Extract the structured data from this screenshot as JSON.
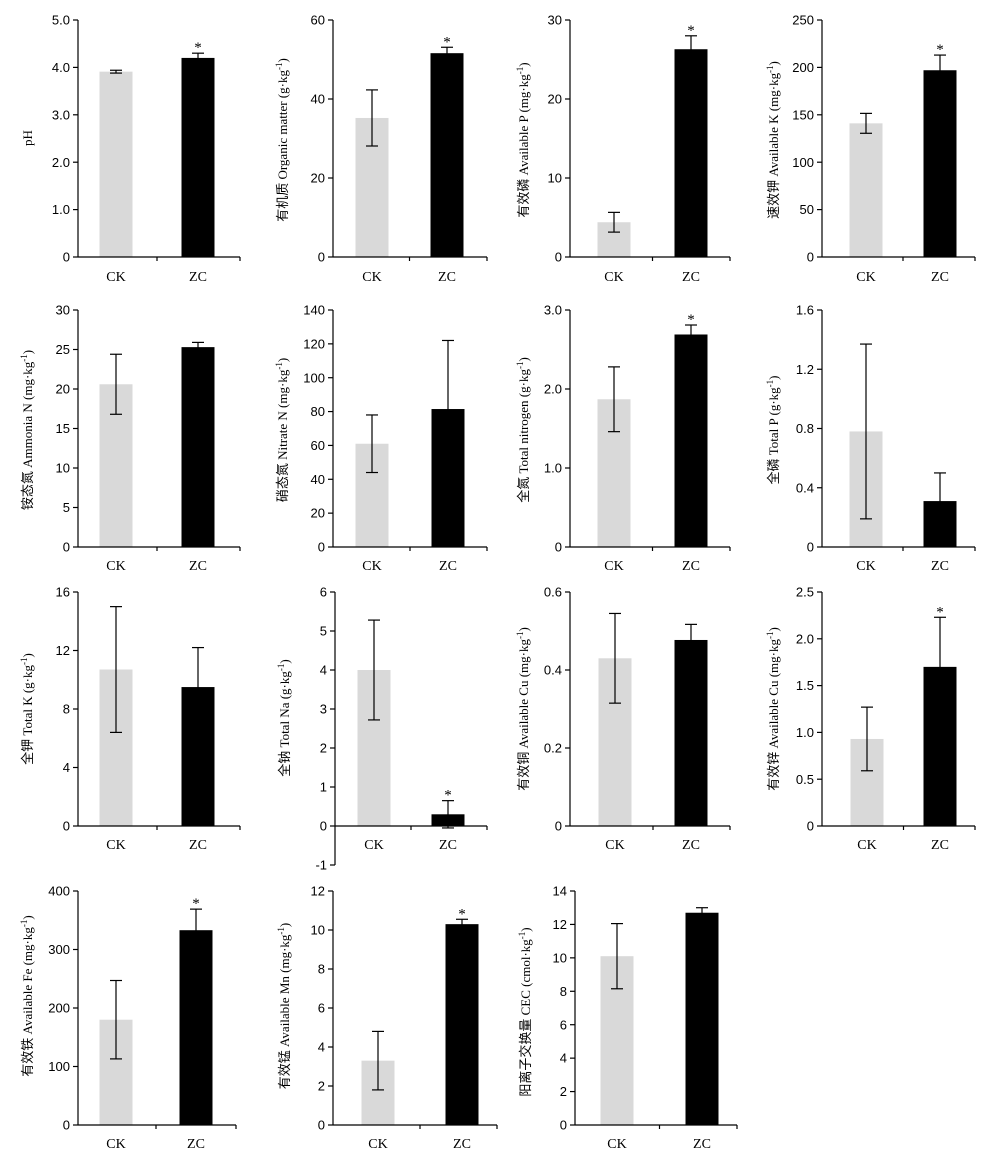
{
  "colors": {
    "CK": "#d9d9d9",
    "ZC": "#000000"
  },
  "chart_data": [
    {
      "type": "bar",
      "categories": [
        "CK",
        "ZC"
      ],
      "values": [
        3.91,
        4.2
      ],
      "errors": [
        0.03,
        0.1
      ],
      "markers": [
        "",
        "*"
      ],
      "ylabel": {
        "text": "pH"
      },
      "ylim": [
        0,
        5
      ],
      "yticks": [
        0,
        1,
        2,
        3,
        4,
        5
      ],
      "ytick_labels": [
        "0",
        "1.0",
        "2.0",
        "3.0",
        "4.0",
        "5.0"
      ]
    },
    {
      "type": "bar",
      "categories": [
        "CK",
        "ZC"
      ],
      "values": [
        35.2,
        51.6
      ],
      "errors": [
        7.1,
        1.5
      ],
      "markers": [
        "",
        "*"
      ],
      "ylabel": {
        "text": "有机质 Organic matter (g·kg",
        "sup": "-1",
        "end": ")"
      },
      "ylim": [
        0,
        60
      ],
      "yticks": [
        0,
        20,
        40,
        60
      ],
      "ytick_labels": [
        "0",
        "20",
        "40",
        "60"
      ]
    },
    {
      "type": "bar",
      "categories": [
        "CK",
        "ZC"
      ],
      "values": [
        4.4,
        26.3
      ],
      "errors": [
        1.25,
        1.7
      ],
      "markers": [
        "",
        "*"
      ],
      "ylabel": {
        "text": "有效磷 Available P (mg·kg",
        "sup": "-1",
        "end": ")"
      },
      "ylim": [
        0,
        30
      ],
      "yticks": [
        0,
        10,
        20,
        30
      ],
      "ytick_labels": [
        "0",
        "10",
        "20",
        "30"
      ]
    },
    {
      "type": "bar",
      "categories": [
        "CK",
        "ZC"
      ],
      "values": [
        141,
        197
      ],
      "errors": [
        10.5,
        16
      ],
      "markers": [
        "",
        "*"
      ],
      "ylabel": {
        "text": "速效钾 Available K (mg·kg",
        "sup": "-1",
        "end": ")"
      },
      "ylim": [
        0,
        250
      ],
      "yticks": [
        0,
        50,
        100,
        150,
        200,
        250
      ],
      "ytick_labels": [
        "0",
        "50",
        "100",
        "150",
        "200",
        "250"
      ]
    },
    {
      "type": "bar",
      "categories": [
        "CK",
        "ZC"
      ],
      "values": [
        20.6,
        25.3
      ],
      "errors": [
        3.8,
        0.6
      ],
      "markers": [
        "",
        ""
      ],
      "ylabel": {
        "text": "铵态氮 Ammonia N (mg·kg",
        "sup": "-1",
        "end": ")"
      },
      "ylim": [
        0,
        30
      ],
      "yticks": [
        0,
        5,
        10,
        15,
        20,
        25,
        30
      ],
      "ytick_labels": [
        "0",
        "5",
        "10",
        "15",
        "20",
        "25",
        "30"
      ]
    },
    {
      "type": "bar",
      "categories": [
        "CK",
        "ZC"
      ],
      "values": [
        61,
        81.5
      ],
      "errors": [
        17,
        40.5
      ],
      "markers": [
        "",
        ""
      ],
      "ylabel": {
        "text": "硝态氮 Nitrate N (mg·kg",
        "sup": "-1",
        "end": ")"
      },
      "ylim": [
        0,
        140
      ],
      "yticks": [
        0,
        20,
        40,
        60,
        80,
        100,
        120,
        140
      ],
      "ytick_labels": [
        "0",
        "20",
        "40",
        "60",
        "80",
        "100",
        "120",
        "140"
      ]
    },
    {
      "type": "bar",
      "categories": [
        "CK",
        "ZC"
      ],
      "values": [
        1.87,
        2.69
      ],
      "errors": [
        0.41,
        0.12
      ],
      "markers": [
        "",
        "*"
      ],
      "ylabel": {
        "text": "全氮 Total nitrogen (g·kg",
        "sup": "-1",
        "end": ")"
      },
      "ylim": [
        0,
        3
      ],
      "yticks": [
        0,
        1,
        2,
        3
      ],
      "ytick_labels": [
        "0",
        "1.0",
        "2.0",
        "3.0"
      ]
    },
    {
      "type": "bar",
      "categories": [
        "CK",
        "ZC"
      ],
      "values": [
        0.78,
        0.31
      ],
      "errors": [
        0.59,
        0.19
      ],
      "markers": [
        "",
        ""
      ],
      "ylabel": {
        "text": "全磷 Total P (g·kg",
        "sup": "-1",
        "end": ")"
      },
      "ylim": [
        0,
        1.6
      ],
      "yticks": [
        0,
        0.4,
        0.8,
        1.2,
        1.6
      ],
      "ytick_labels": [
        "0",
        "0.4",
        "0.8",
        "1.2",
        "1.6"
      ]
    },
    {
      "type": "bar",
      "categories": [
        "CK",
        "ZC"
      ],
      "values": [
        10.7,
        9.5
      ],
      "errors": [
        4.3,
        2.7
      ],
      "markers": [
        "",
        ""
      ],
      "ylabel": {
        "text": "全钾 Total K (g·kg",
        "sup": "-1",
        "end": ")"
      },
      "ylim": [
        0,
        16
      ],
      "yticks": [
        0,
        4,
        8,
        12,
        16
      ],
      "ytick_labels": [
        "0",
        "4",
        "8",
        "12",
        "16"
      ]
    },
    {
      "type": "bar",
      "categories": [
        "CK",
        "ZC"
      ],
      "values": [
        4.0,
        0.3
      ],
      "errors": [
        1.28,
        0.35
      ],
      "markers": [
        "",
        "*"
      ],
      "ylabel": {
        "text": "全钠 Total Na (g·kg",
        "sup": "-1",
        "end": ")"
      },
      "ylim": [
        -1,
        6
      ],
      "yticks": [
        -1,
        0,
        1,
        2,
        3,
        4,
        5,
        6
      ],
      "ytick_labels": [
        "-1",
        "0",
        "1",
        "2",
        "3",
        "4",
        "5",
        "6"
      ]
    },
    {
      "type": "bar",
      "categories": [
        "CK",
        "ZC"
      ],
      "values": [
        0.43,
        0.477
      ],
      "errors": [
        0.115,
        0.04
      ],
      "markers": [
        "",
        ""
      ],
      "ylabel": {
        "text": "有效铜 Available Cu (mg·kg",
        "sup": "-1",
        "end": ")"
      },
      "ylim": [
        0,
        0.6
      ],
      "yticks": [
        0,
        0.2,
        0.4,
        0.6
      ],
      "ytick_labels": [
        "0",
        "0.2",
        "0.4",
        "0.6"
      ]
    },
    {
      "type": "bar",
      "categories": [
        "CK",
        "ZC"
      ],
      "values": [
        0.93,
        1.7
      ],
      "errors": [
        0.34,
        0.53
      ],
      "markers": [
        "",
        "*"
      ],
      "ylabel": {
        "text": "有效锌 Available Cu (mg·kg",
        "sup": "-1",
        "end": ")"
      },
      "ylim": [
        0,
        2.5
      ],
      "yticks": [
        0,
        0.5,
        1.0,
        1.5,
        2.0,
        2.5
      ],
      "ytick_labels": [
        "0",
        "0.5",
        "1.0",
        "1.5",
        "2.0",
        "2.5"
      ]
    },
    {
      "type": "bar",
      "categories": [
        "CK",
        "ZC"
      ],
      "values": [
        180,
        333
      ],
      "errors": [
        67,
        36
      ],
      "markers": [
        "",
        "*"
      ],
      "ylabel": {
        "text": "有效铁 Available Fe (mg·kg",
        "sup": "-1",
        "end": ")"
      },
      "ylim": [
        0,
        400
      ],
      "yticks": [
        0,
        100,
        200,
        300,
        400
      ],
      "ytick_labels": [
        "0",
        "100",
        "200",
        "300",
        "400"
      ]
    },
    {
      "type": "bar",
      "categories": [
        "CK",
        "ZC"
      ],
      "values": [
        3.3,
        10.3
      ],
      "errors": [
        1.5,
        0.25
      ],
      "markers": [
        "",
        "*"
      ],
      "ylabel": {
        "text": "有效锰 Available Mn (mg·kg",
        "sup": "-1",
        "end": ")"
      },
      "ylim": [
        0,
        12
      ],
      "yticks": [
        0,
        2,
        4,
        6,
        8,
        10,
        12
      ],
      "ytick_labels": [
        "0",
        "2",
        "4",
        "6",
        "8",
        "10",
        "12"
      ]
    },
    {
      "type": "bar",
      "categories": [
        "CK",
        "ZC"
      ],
      "values": [
        10.1,
        12.7
      ],
      "errors": [
        1.95,
        0.3
      ],
      "markers": [
        "",
        ""
      ],
      "ylabel": {
        "text": "阳离子交换量 CEC (cmol·kg",
        "sup": "-1",
        "end": ")"
      },
      "ylim": [
        0,
        14
      ],
      "yticks": [
        0,
        2,
        4,
        6,
        8,
        10,
        12,
        14
      ],
      "ytick_labels": [
        "0",
        "2",
        "4",
        "6",
        "8",
        "10",
        "12",
        "14"
      ]
    }
  ]
}
